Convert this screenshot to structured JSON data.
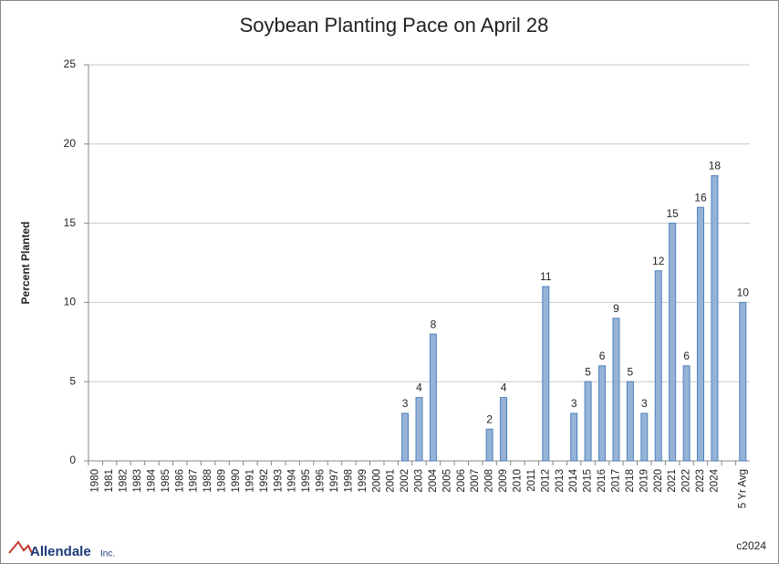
{
  "chart_data": {
    "type": "bar",
    "title": "Soybean Planting Pace on April 28",
    "y_label": "Percent Planted",
    "categories": [
      "1980",
      "1981",
      "1982",
      "1983",
      "1984",
      "1985",
      "1986",
      "1987",
      "1988",
      "1989",
      "1990",
      "1991",
      "1992",
      "1993",
      "1994",
      "1995",
      "1996",
      "1997",
      "1998",
      "1999",
      "2000",
      "2001",
      "2002",
      "2003",
      "2004",
      "2005",
      "2006",
      "2007",
      "2008",
      "2009",
      "2010",
      "2011",
      "2012",
      "2013",
      "2014",
      "2015",
      "2016",
      "2017",
      "2018",
      "2019",
      "2020",
      "2021",
      "2022",
      "2023",
      "2024",
      null,
      "5 Yr Avg"
    ],
    "values": [
      null,
      null,
      null,
      null,
      null,
      null,
      null,
      null,
      null,
      null,
      null,
      null,
      null,
      null,
      null,
      null,
      null,
      null,
      null,
      null,
      null,
      null,
      3,
      4,
      8,
      null,
      null,
      null,
      2,
      4,
      null,
      null,
      11,
      null,
      3,
      5,
      6,
      9,
      5,
      3,
      12,
      15,
      6,
      16,
      18,
      null,
      10
    ],
    "color": "#95b3d7",
    "edge_color": "#4f81bd",
    "ylim": [
      0,
      25
    ],
    "yticks": [
      0,
      5,
      10,
      15,
      20,
      25
    ],
    "grid": true,
    "logo": "Allendale",
    "logo_suffix": "Inc.",
    "footer": "c2024"
  }
}
